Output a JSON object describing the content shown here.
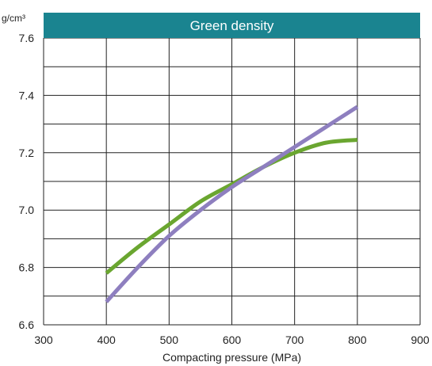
{
  "chart_data": {
    "type": "line",
    "title": "Green density",
    "ylabel": "g/cm³",
    "xlabel": "Compacting pressure (MPa)",
    "xlim": [
      300,
      900
    ],
    "ylim": [
      6.6,
      7.6
    ],
    "x_ticks": [
      "300",
      "400",
      "500",
      "600",
      "700",
      "800",
      "900"
    ],
    "y_ticks": [
      "6.6",
      "6.8",
      "7.0",
      "7.2",
      "7.4",
      "7.6"
    ],
    "grid": true,
    "series": [
      {
        "color": "#6aa630",
        "x": [
          400,
          450,
          500,
          550,
          600,
          650,
          700,
          750,
          800
        ],
        "y": [
          6.78,
          6.87,
          6.95,
          7.03,
          7.09,
          7.15,
          7.2,
          7.235,
          7.245
        ]
      },
      {
        "color": "#8e7fbf",
        "x": [
          400,
          450,
          500,
          550,
          600,
          650,
          700,
          750,
          800
        ],
        "y": [
          6.68,
          6.8,
          6.91,
          7.0,
          7.08,
          7.15,
          7.22,
          7.29,
          7.36
        ]
      }
    ],
    "title_bar_color": "#1a8490",
    "grid_color": "#222222"
  }
}
